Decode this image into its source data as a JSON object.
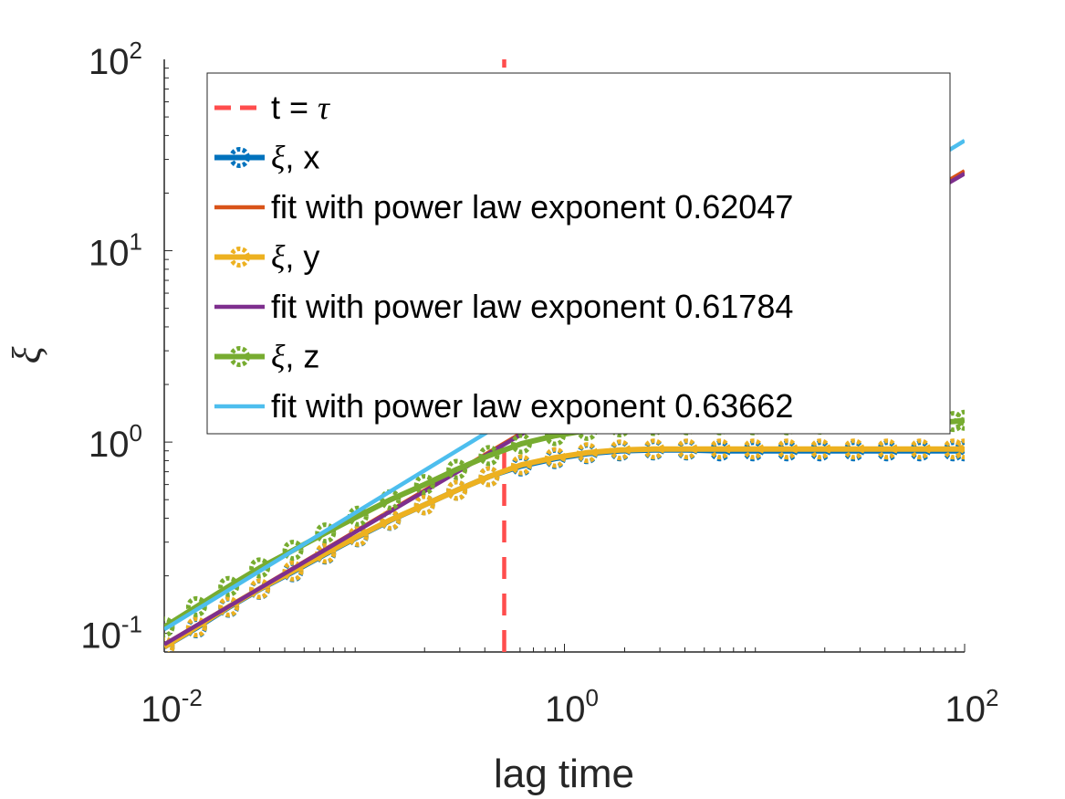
{
  "chart_data": {
    "type": "line",
    "title": "",
    "xlabel": "lag time",
    "ylabel": "ξ",
    "xscale": "log",
    "yscale": "log",
    "xlim": [
      0.01,
      100
    ],
    "ylim": [
      0.08,
      100
    ],
    "x_ticks": [
      {
        "base": "10",
        "exp": "-2",
        "value": 0.01
      },
      {
        "base": "10",
        "exp": "0",
        "value": 1
      },
      {
        "base": "10",
        "exp": "2",
        "value": 100
      }
    ],
    "y_ticks": [
      {
        "base": "10",
        "exp": "-1",
        "value": 0.1
      },
      {
        "base": "10",
        "exp": "0",
        "value": 1
      },
      {
        "base": "10",
        "exp": "1",
        "value": 10
      },
      {
        "base": "10",
        "exp": "2",
        "value": 100
      }
    ],
    "grid": false,
    "legend_position": "top-right",
    "tau": 0.5,
    "series": [
      {
        "name": "t = τ",
        "legend_main": "t = ",
        "legend_sym": "τ",
        "kind": "vline",
        "color": "#ff4d4d",
        "x": [
          0.5,
          0.5
        ],
        "y": [
          0.08,
          100
        ]
      },
      {
        "name": "ξ, x",
        "legend_sym": "ξ",
        "legend_main": ", x",
        "kind": "markers",
        "color": "#0072bd",
        "x": [
          0.01,
          0.0145,
          0.021,
          0.03,
          0.044,
          0.064,
          0.093,
          0.135,
          0.2,
          0.29,
          0.42,
          0.61,
          0.9,
          1.3,
          1.9,
          2.8,
          4.1,
          6,
          8.8,
          13,
          19,
          28,
          41,
          60,
          88,
          100
        ],
        "y": [
          0.085,
          0.107,
          0.137,
          0.17,
          0.21,
          0.26,
          0.32,
          0.39,
          0.47,
          0.56,
          0.66,
          0.75,
          0.82,
          0.87,
          0.9,
          0.91,
          0.91,
          0.9,
          0.9,
          0.9,
          0.9,
          0.9,
          0.9,
          0.9,
          0.9,
          0.9
        ]
      },
      {
        "name": "fit with power law exponent 0.62047",
        "legend_main": "fit with power law exponent 0.62047",
        "kind": "line",
        "color": "#d95319",
        "x": [
          0.01,
          100
        ],
        "y": [
          0.0876,
          26.09
        ]
      },
      {
        "name": "ξ, y",
        "legend_sym": "ξ",
        "legend_main": ", y",
        "kind": "markers",
        "color": "#edb120",
        "x": [
          0.01,
          0.0145,
          0.021,
          0.03,
          0.044,
          0.064,
          0.093,
          0.135,
          0.2,
          0.29,
          0.42,
          0.61,
          0.9,
          1.3,
          1.9,
          2.8,
          4.1,
          6,
          8.8,
          13,
          19,
          28,
          41,
          60,
          88,
          100
        ],
        "y": [
          0.085,
          0.108,
          0.138,
          0.171,
          0.212,
          0.262,
          0.322,
          0.392,
          0.47,
          0.56,
          0.66,
          0.76,
          0.83,
          0.88,
          0.91,
          0.92,
          0.92,
          0.92,
          0.92,
          0.92,
          0.92,
          0.92,
          0.92,
          0.92,
          0.92,
          0.92
        ]
      },
      {
        "name": "fit with power law exponent 0.61784",
        "legend_main": "fit with power law exponent 0.61784",
        "kind": "line",
        "color": "#7e2f8e",
        "x": [
          0.01,
          100
        ],
        "y": [
          0.0876,
          25.3
        ]
      },
      {
        "name": "ξ, z",
        "legend_sym": "ξ",
        "legend_main": ", z",
        "kind": "markers",
        "color": "#77ac30",
        "x": [
          0.01,
          0.0145,
          0.021,
          0.03,
          0.044,
          0.064,
          0.093,
          0.135,
          0.2,
          0.29,
          0.42,
          0.61,
          0.9,
          1.3,
          1.9,
          2.8,
          4.1,
          6,
          8.8,
          13,
          19,
          28,
          41,
          60,
          88,
          100
        ],
        "y": [
          0.108,
          0.138,
          0.176,
          0.22,
          0.272,
          0.335,
          0.41,
          0.5,
          0.6,
          0.72,
          0.85,
          0.98,
          1.08,
          1.15,
          1.2,
          1.22,
          1.23,
          1.23,
          1.23,
          1.23,
          1.24,
          1.25,
          1.25,
          1.26,
          1.28,
          1.3
        ]
      },
      {
        "name": "fit with power law exponent 0.63662",
        "legend_main": "fit with power law exponent 0.63662",
        "kind": "line",
        "color": "#4dbeee",
        "x": [
          0.01,
          100
        ],
        "y": [
          0.105,
          37.6
        ]
      }
    ]
  }
}
